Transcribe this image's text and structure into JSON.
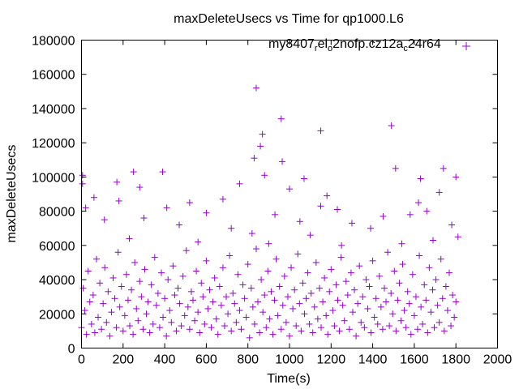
{
  "chart_data": {
    "type": "scatter",
    "title": "maxDeleteUsecs vs Time for qp1000.L6",
    "xlabel": "Time(s)",
    "ylabel": "maxDeleteUsecs",
    "xlim": [
      0,
      2000
    ],
    "ylim": [
      0,
      180000
    ],
    "xticks": [
      "0",
      "200",
      "400",
      "600",
      "800",
      "1000",
      "1200",
      "1400",
      "1600",
      "1800",
      "2000"
    ],
    "yticks": [
      "0",
      "20000",
      "40000",
      "60000",
      "80000",
      "100000",
      "120000",
      "140000",
      "160000",
      "180000"
    ],
    "grid": false,
    "legend_placement": "top-right",
    "marker": "plus",
    "series": [
      {
        "name": "my8407_rel_o2nofp.cz12a_c24r64",
        "name_parts": [
          "my8407",
          "r",
          "el",
          "o",
          "2nofp.cz12a",
          "c",
          "24r64"
        ],
        "color": "#9400d3",
        "points": [
          [
            840,
            152000
          ],
          [
            960,
            134000
          ],
          [
            1150,
            127000
          ],
          [
            1490,
            130000
          ],
          [
            870,
            125000
          ],
          [
            860,
            118000
          ],
          [
            830,
            111000
          ],
          [
            965,
            109000
          ],
          [
            1510,
            105000
          ],
          [
            1740,
            105000
          ],
          [
            250,
            103000
          ],
          [
            390,
            103000
          ],
          [
            880,
            101000
          ],
          [
            5,
            101000
          ],
          [
            1800,
            100000
          ],
          [
            1070,
            99000
          ],
          [
            1630,
            99000
          ],
          [
            170,
            97000
          ],
          [
            760,
            96000
          ],
          [
            5,
            96000
          ],
          [
            280,
            94000
          ],
          [
            1000,
            93000
          ],
          [
            1720,
            91000
          ],
          [
            1180,
            89000
          ],
          [
            60,
            88000
          ],
          [
            680,
            87000
          ],
          [
            180,
            86000
          ],
          [
            520,
            85000
          ],
          [
            1620,
            85000
          ],
          [
            1150,
            83000
          ],
          [
            20,
            82000
          ],
          [
            410,
            82000
          ],
          [
            1660,
            80000
          ],
          [
            1230,
            81000
          ],
          [
            600,
            79000
          ],
          [
            930,
            78000
          ],
          [
            1450,
            77000
          ],
          [
            1580,
            78000
          ],
          [
            300,
            76000
          ],
          [
            110,
            75000
          ],
          [
            1050,
            74000
          ],
          [
            1300,
            73000
          ],
          [
            470,
            72000
          ],
          [
            1780,
            72000
          ],
          [
            720,
            70000
          ],
          [
            1390,
            70000
          ],
          [
            820,
            67000
          ],
          [
            1100,
            66000
          ],
          [
            1810,
            65000
          ],
          [
            230,
            64000
          ],
          [
            560,
            62000
          ],
          [
            900,
            61000
          ],
          [
            1250,
            60000
          ],
          [
            1540,
            61000
          ],
          [
            1690,
            63000
          ],
          [
            0,
            12000
          ],
          [
            8,
            35000
          ],
          [
            16,
            22000
          ],
          [
            24,
            8000
          ],
          [
            32,
            45000
          ],
          [
            40,
            27000
          ],
          [
            48,
            14000
          ],
          [
            56,
            31000
          ],
          [
            64,
            9000
          ],
          [
            72,
            52000
          ],
          [
            80,
            18000
          ],
          [
            88,
            38000
          ],
          [
            96,
            11000
          ],
          [
            104,
            26000
          ],
          [
            112,
            47000
          ],
          [
            120,
            15000
          ],
          [
            128,
            33000
          ],
          [
            136,
            7000
          ],
          [
            144,
            21000
          ],
          [
            152,
            41000
          ],
          [
            160,
            29000
          ],
          [
            168,
            12000
          ],
          [
            176,
            56000
          ],
          [
            184,
            24000
          ],
          [
            192,
            36000
          ],
          [
            200,
            10000
          ],
          [
            208,
            19000
          ],
          [
            216,
            43000
          ],
          [
            224,
            28000
          ],
          [
            232,
            13000
          ],
          [
            240,
            34000
          ],
          [
            248,
            8000
          ],
          [
            256,
            50000
          ],
          [
            264,
            23000
          ],
          [
            272,
            16000
          ],
          [
            280,
            39000
          ],
          [
            288,
            30000
          ],
          [
            296,
            11000
          ],
          [
            304,
            46000
          ],
          [
            312,
            20000
          ],
          [
            320,
            27000
          ],
          [
            328,
            9000
          ],
          [
            336,
            37000
          ],
          [
            344,
            14000
          ],
          [
            352,
            53000
          ],
          [
            360,
            25000
          ],
          [
            368,
            32000
          ],
          [
            376,
            12000
          ],
          [
            384,
            44000
          ],
          [
            392,
            18000
          ],
          [
            400,
            29000
          ],
          [
            408,
            7000
          ],
          [
            416,
            40000
          ],
          [
            424,
            22000
          ],
          [
            432,
            15000
          ],
          [
            440,
            48000
          ],
          [
            448,
            31000
          ],
          [
            456,
            10000
          ],
          [
            464,
            35000
          ],
          [
            472,
            26000
          ],
          [
            480,
            13000
          ],
          [
            488,
            42000
          ],
          [
            496,
            19000
          ],
          [
            504,
            57000
          ],
          [
            512,
            24000
          ],
          [
            520,
            11000
          ],
          [
            528,
            33000
          ],
          [
            536,
            28000
          ],
          [
            544,
            16000
          ],
          [
            552,
            45000
          ],
          [
            560,
            21000
          ],
          [
            568,
            9000
          ],
          [
            576,
            38000
          ],
          [
            584,
            30000
          ],
          [
            592,
            14000
          ],
          [
            600,
            51000
          ],
          [
            608,
            23000
          ],
          [
            616,
            34000
          ],
          [
            624,
            12000
          ],
          [
            632,
            27000
          ],
          [
            640,
            41000
          ],
          [
            648,
            17000
          ],
          [
            656,
            8000
          ],
          [
            664,
            36000
          ],
          [
            672,
            25000
          ],
          [
            680,
            47000
          ],
          [
            688,
            13000
          ],
          [
            696,
            30000
          ],
          [
            704,
            20000
          ],
          [
            712,
            54000
          ],
          [
            720,
            10000
          ],
          [
            728,
            32000
          ],
          [
            736,
            26000
          ],
          [
            744,
            15000
          ],
          [
            752,
            43000
          ],
          [
            760,
            22000
          ],
          [
            768,
            11000
          ],
          [
            776,
            37000
          ],
          [
            784,
            29000
          ],
          [
            792,
            18000
          ],
          [
            800,
            49000
          ],
          [
            808,
            6000
          ],
          [
            816,
            35000
          ],
          [
            824,
            24000
          ],
          [
            832,
            14000
          ],
          [
            840,
            58000
          ],
          [
            848,
            27000
          ],
          [
            856,
            9000
          ],
          [
            864,
            40000
          ],
          [
            872,
            21000
          ],
          [
            880,
            31000
          ],
          [
            888,
            12000
          ],
          [
            896,
            45000
          ],
          [
            904,
            17000
          ],
          [
            912,
            33000
          ],
          [
            920,
            8000
          ],
          [
            928,
            28000
          ],
          [
            936,
            52000
          ],
          [
            944,
            19000
          ],
          [
            952,
            36000
          ],
          [
            960,
            11000
          ],
          [
            968,
            25000
          ],
          [
            976,
            42000
          ],
          [
            984,
            15000
          ],
          [
            992,
            30000
          ],
          [
            1000,
            7000
          ],
          [
            1008,
            47000
          ],
          [
            1016,
            23000
          ],
          [
            1024,
            34000
          ],
          [
            1032,
            13000
          ],
          [
            1040,
            55000
          ],
          [
            1048,
            26000
          ],
          [
            1056,
            10000
          ],
          [
            1064,
            38000
          ],
          [
            1072,
            20000
          ],
          [
            1080,
            29000
          ],
          [
            1088,
            44000
          ],
          [
            1096,
            14000
          ],
          [
            1104,
            32000
          ],
          [
            1112,
            9000
          ],
          [
            1120,
            24000
          ],
          [
            1128,
            50000
          ],
          [
            1136,
            17000
          ],
          [
            1144,
            35000
          ],
          [
            1152,
            12000
          ],
          [
            1160,
            27000
          ],
          [
            1168,
            41000
          ],
          [
            1176,
            19000
          ],
          [
            1184,
            8000
          ],
          [
            1192,
            33000
          ],
          [
            1200,
            46000
          ],
          [
            1208,
            22000
          ],
          [
            1216,
            13000
          ],
          [
            1224,
            37000
          ],
          [
            1232,
            28000
          ],
          [
            1240,
            10000
          ],
          [
            1248,
            53000
          ],
          [
            1256,
            25000
          ],
          [
            1264,
            16000
          ],
          [
            1272,
            39000
          ],
          [
            1280,
            31000
          ],
          [
            1288,
            11000
          ],
          [
            1296,
            44000
          ],
          [
            1304,
            21000
          ],
          [
            1312,
            34000
          ],
          [
            1320,
            7000
          ],
          [
            1328,
            26000
          ],
          [
            1336,
            48000
          ],
          [
            1344,
            15000
          ],
          [
            1352,
            30000
          ],
          [
            1360,
            12000
          ],
          [
            1368,
            40000
          ],
          [
            1376,
            23000
          ],
          [
            1384,
            36000
          ],
          [
            1392,
            9000
          ],
          [
            1400,
            51000
          ],
          [
            1408,
            18000
          ],
          [
            1416,
            29000
          ],
          [
            1424,
            14000
          ],
          [
            1432,
            42000
          ],
          [
            1440,
            24000
          ],
          [
            1448,
            11000
          ],
          [
            1456,
            35000
          ],
          [
            1464,
            27000
          ],
          [
            1472,
            56000
          ],
          [
            1480,
            13000
          ],
          [
            1488,
            32000
          ],
          [
            1496,
            20000
          ],
          [
            1504,
            45000
          ],
          [
            1512,
            10000
          ],
          [
            1520,
            28000
          ],
          [
            1528,
            38000
          ],
          [
            1536,
            16000
          ],
          [
            1544,
            49000
          ],
          [
            1552,
            22000
          ],
          [
            1560,
            12000
          ],
          [
            1568,
            33000
          ],
          [
            1576,
            26000
          ],
          [
            1584,
            8000
          ],
          [
            1592,
            43000
          ],
          [
            1600,
            19000
          ],
          [
            1608,
            30000
          ],
          [
            1616,
            11000
          ],
          [
            1624,
            54000
          ],
          [
            1632,
            24000
          ],
          [
            1640,
            14000
          ],
          [
            1648,
            37000
          ],
          [
            1656,
            28000
          ],
          [
            1664,
            9000
          ],
          [
            1672,
            47000
          ],
          [
            1680,
            21000
          ],
          [
            1688,
            34000
          ],
          [
            1696,
            12000
          ],
          [
            1704,
            40000
          ],
          [
            1712,
            25000
          ],
          [
            1720,
            15000
          ],
          [
            1728,
            52000
          ],
          [
            1736,
            29000
          ],
          [
            1744,
            10000
          ],
          [
            1752,
            36000
          ],
          [
            1760,
            22000
          ],
          [
            1768,
            44000
          ],
          [
            1776,
            13000
          ],
          [
            1784,
            31000
          ],
          [
            1792,
            18000
          ],
          [
            1800,
            27000
          ]
        ]
      }
    ]
  }
}
